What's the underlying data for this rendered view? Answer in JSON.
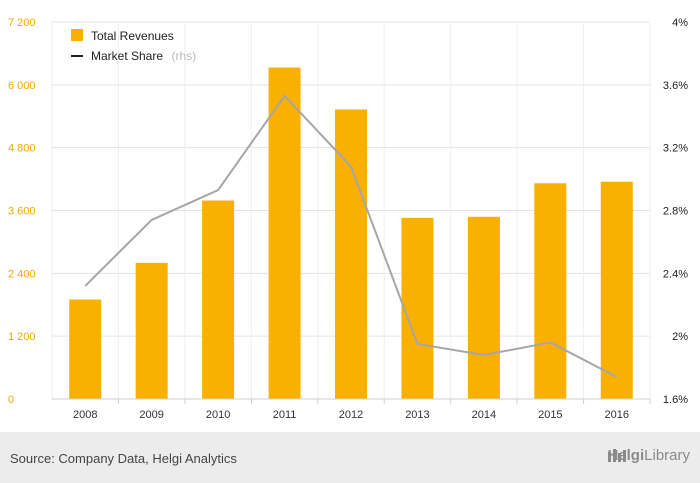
{
  "chart_data": {
    "type": "bar+line",
    "categories": [
      "2008",
      "2009",
      "2010",
      "2011",
      "2012",
      "2013",
      "2014",
      "2015",
      "2016"
    ],
    "series": [
      {
        "name": "Total Revenues",
        "type": "bar",
        "axis": "left",
        "color": "#f9b000",
        "values": [
          1900,
          2600,
          3790,
          6330,
          5530,
          3460,
          3480,
          4120,
          4150
        ]
      },
      {
        "name": "Market Share",
        "type": "line",
        "axis": "right",
        "color": "#a6a6a6",
        "values": [
          2.32,
          2.74,
          2.93,
          3.53,
          3.08,
          1.95,
          1.88,
          1.96,
          1.74
        ]
      }
    ],
    "left_axis": {
      "min": 0,
      "max": 7200,
      "ticks": [
        "0",
        "1 200",
        "2 400",
        "3 600",
        "4 800",
        "6 000",
        "7 200"
      ]
    },
    "right_axis": {
      "min": 1.6,
      "max": 4.0,
      "ticks": [
        "1.6%",
        "2%",
        "2.4%",
        "2.8%",
        "3.2%",
        "3.6%",
        "4%"
      ]
    },
    "grid": true,
    "legend_position": "top-left"
  },
  "legend": {
    "bar_label": "Total Revenues",
    "line_label": "Market Share",
    "line_suffix": "(rhs)"
  },
  "footer": {
    "source": "Source: Company Data, Helgi Analytics",
    "logo_name": "Helgi",
    "logo_suffix": "Library"
  }
}
